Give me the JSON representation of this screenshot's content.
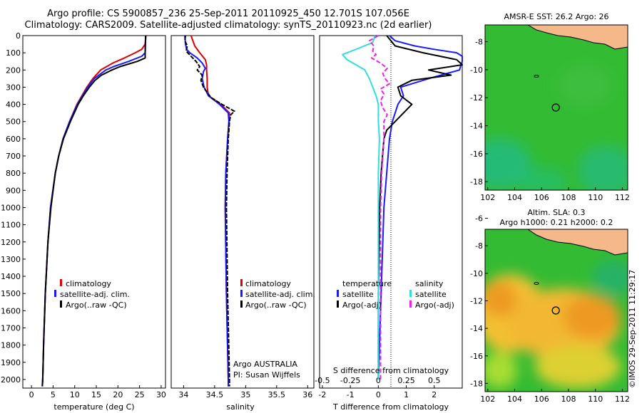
{
  "header": {
    "title_line1": "Argo profile: CS 5900857_236 25-Sep-2011 20110925_450 12.701S 107.056E",
    "title_line2": "Climatology: CARS2009. Satellite-adjusted climatology: synTS_20110923.nc (2d earlier)"
  },
  "colors": {
    "climatology": "#e00000",
    "satellite": "#1a1aff",
    "argo": "#000000",
    "salinity_sat": "#33dddd",
    "salinity_argo": "#ee22ee",
    "land": "#f5b88a",
    "sea_sst": "#33bb33",
    "sea_sla_warm": "#f2a630"
  },
  "depth_axis": {
    "ticks": [
      0,
      100,
      200,
      300,
      400,
      500,
      600,
      700,
      800,
      900,
      1000,
      1100,
      1200,
      1300,
      1400,
      1500,
      1600,
      1700,
      1800,
      1900,
      2000
    ]
  },
  "chart_data": [
    {
      "type": "line",
      "name": "temperature-panel",
      "xlabel": "temperature (deg C)",
      "xlim": [
        -2,
        31
      ],
      "ylim": [
        2050,
        0
      ],
      "x_ticks": [
        0,
        5,
        10,
        15,
        20,
        25,
        30
      ],
      "legend": [
        "climatology",
        "satellite-adj. clim.",
        "Argo(..raw -QC)"
      ],
      "series": [
        {
          "name": "climatology",
          "depth": [
            0,
            50,
            80,
            100,
            130,
            160,
            200,
            250,
            300,
            400,
            500,
            600,
            700,
            800,
            1000,
            1200,
            1500,
            1800,
            2000,
            2040
          ],
          "values": [
            26.5,
            26.3,
            25.5,
            24,
            21.5,
            18.8,
            16,
            14.2,
            12.8,
            10.5,
            8.8,
            7.3,
            6.3,
            5.5,
            4.4,
            3.8,
            3.2,
            2.8,
            2.6,
            2.5
          ]
        },
        {
          "name": "satellite-adj. clim.",
          "depth": [
            0,
            100,
            120,
            150,
            180,
            200,
            250,
            300,
            400,
            500,
            600,
            700,
            800,
            1000,
            1200,
            1500,
            1800,
            2000,
            2040
          ],
          "values": [
            26.4,
            26.3,
            25.5,
            22.5,
            19,
            17.2,
            14.5,
            13,
            10.6,
            8.8,
            7.3,
            6.3,
            5.5,
            4.4,
            3.8,
            3.2,
            2.8,
            2.6,
            2.5
          ]
        },
        {
          "name": "Argo(..raw -QC)",
          "depth": [
            0,
            100,
            130,
            150,
            180,
            200,
            230,
            260,
            300,
            350,
            400,
            450,
            500,
            600,
            700,
            800,
            1000,
            1200,
            1500,
            1800,
            2000,
            2040
          ],
          "values": [
            26.4,
            26.3,
            26.3,
            24.5,
            20.5,
            18.6,
            16.2,
            14.7,
            13.4,
            12,
            10.8,
            9.9,
            9,
            7.4,
            6.3,
            5.5,
            4.5,
            3.8,
            3.2,
            2.8,
            2.6,
            2.5
          ]
        }
      ]
    },
    {
      "type": "line",
      "name": "salinity-panel",
      "xlabel": "salinity",
      "xlim": [
        33.8,
        36.1
      ],
      "ylim": [
        2050,
        0
      ],
      "x_ticks": [
        34,
        34.5,
        35,
        35.5,
        36
      ],
      "legend": [
        "climatology",
        "satellite-adj. clim.",
        "Argo(..raw -QC)"
      ],
      "annotation": [
        "Argo AUSTRALIA",
        "PI: Susan Wijffels"
      ],
      "series": [
        {
          "name": "climatology",
          "depth": [
            0,
            60,
            100,
            140,
            170,
            200,
            250,
            300,
            350,
            400,
            450,
            500,
            600,
            800,
            1000,
            1500,
            2000,
            2040
          ],
          "values": [
            34.12,
            34.18,
            34.26,
            34.35,
            34.37,
            34.37,
            34.38,
            34.38,
            34.4,
            34.6,
            34.74,
            34.73,
            34.71,
            34.68,
            34.67,
            34.69,
            34.72,
            34.72
          ]
        },
        {
          "name": "satellite-adj. clim.",
          "depth": [
            0,
            50,
            80,
            100,
            130,
            160,
            190,
            210,
            250,
            300,
            350,
            400,
            450,
            500,
            600,
            800,
            1000,
            1500,
            2000,
            2040
          ],
          "values": [
            34.02,
            34.03,
            34.05,
            34.1,
            34.22,
            34.3,
            34.35,
            34.32,
            34.3,
            34.33,
            34.4,
            34.58,
            34.72,
            34.73,
            34.71,
            34.68,
            34.67,
            34.69,
            34.72,
            34.72
          ]
        },
        {
          "name": "Argo(..raw -QC)",
          "depth": [
            0,
            30,
            60,
            90,
            120,
            150,
            180,
            200,
            230,
            260,
            300,
            330,
            360,
            400,
            440,
            460,
            500,
            550,
            600,
            800,
            1000,
            1500,
            2000,
            2040
          ],
          "values": [
            34.03,
            34.02,
            34.06,
            34.04,
            34.12,
            34.2,
            34.26,
            34.22,
            34.3,
            34.28,
            34.32,
            34.38,
            34.44,
            34.62,
            34.82,
            34.76,
            34.74,
            34.73,
            34.72,
            34.7,
            34.69,
            34.71,
            34.74,
            34.74
          ]
        }
      ]
    },
    {
      "type": "line",
      "name": "difference-panel",
      "xlabel": "T difference from climatology",
      "xlabel_top": "S difference from climatology",
      "x_ticks_T": [
        -2,
        -1,
        0,
        1,
        2
      ],
      "x_ticks_S": [
        -0.5,
        -0.25,
        0,
        0.25,
        0.5
      ],
      "xlim_T": [
        -2.1,
        3
      ],
      "ylim": [
        2050,
        0
      ],
      "legend_T": [
        "temperature",
        "satellite",
        "Argo(-adj)"
      ],
      "legend_S": [
        "salinity",
        "satellite",
        "Argo(-adj)"
      ],
      "series": [
        {
          "name": "T satellite",
          "depth": [
            0,
            30,
            60,
            80,
            100,
            120,
            150,
            200,
            250,
            300,
            350,
            400,
            450,
            500,
            600,
            800,
            1000,
            1500,
            2000
          ],
          "values": [
            0.4,
            0.6,
            1.3,
            2,
            2.8,
            3,
            3,
            2.9,
            1.8,
            0.8,
            0.9,
            0.7,
            0.6,
            0.5,
            0.4,
            0.3,
            0.2,
            0.1,
            0
          ]
        },
        {
          "name": "T Argo(-adj)",
          "depth": [
            0,
            60,
            100,
            140,
            170,
            200,
            230,
            260,
            300,
            350,
            400,
            450,
            500,
            550,
            600,
            800,
            1000,
            1500,
            2000
          ],
          "values": [
            0.3,
            0.6,
            1.6,
            2.8,
            3,
            1.8,
            2.6,
            1.2,
            0.7,
            0.8,
            1.2,
            0.9,
            0.6,
            0.3,
            0.2,
            0.1,
            0.05,
            0,
            0
          ]
        },
        {
          "name": "S satellite",
          "depth": [
            0,
            40,
            80,
            110,
            140,
            170,
            200,
            250,
            300,
            350,
            400,
            500,
            600,
            800,
            1000,
            1500,
            2000
          ],
          "values": [
            -0.03,
            -0.05,
            -0.2,
            -0.32,
            -0.28,
            -0.2,
            -0.12,
            -0.08,
            -0.05,
            -0.02,
            0,
            0,
            0.01,
            0,
            0,
            0,
            0
          ]
        },
        {
          "name": "S Argo(-adj)",
          "depth": [
            0,
            30,
            60,
            90,
            110,
            130,
            160,
            190,
            220,
            250,
            280,
            310,
            340,
            380,
            420,
            460,
            500,
            600,
            800,
            1000,
            1500,
            2000
          ],
          "values": [
            0,
            -0.08,
            -0.04,
            -0.05,
            -0.02,
            -0.06,
            0.02,
            0.08,
            0.04,
            0.06,
            0.1,
            0.02,
            0.05,
            0.02,
            0.04,
            0.08,
            0.05,
            0.05,
            0.03,
            0.02,
            0.02,
            0.02
          ]
        }
      ]
    },
    {
      "type": "heatmap",
      "name": "sst-map",
      "title": "AMSR-E SST: 26.2 Argo: 26",
      "xlim": [
        101.8,
        112.4
      ],
      "ylim": [
        -18.6,
        -6.8
      ],
      "x_ticks": [
        102,
        104,
        106,
        108,
        110,
        112
      ],
      "y_ticks": [
        -8,
        -10,
        -12,
        -14,
        -16,
        -18
      ],
      "argo_position": [
        107.056,
        -12.701
      ]
    },
    {
      "type": "heatmap",
      "name": "sla-map",
      "title_line1": "Altim. SLA: 0.3",
      "title_line2": "Argo h1000: 0.21 h2000: 0.2",
      "xlim": [
        101.8,
        112.4
      ],
      "ylim": [
        -18.6,
        -6.8
      ],
      "x_ticks": [
        102,
        104,
        106,
        108,
        110,
        112
      ],
      "y_ticks": [
        -6,
        -8,
        -10,
        -12,
        -14,
        -16,
        -18
      ],
      "argo_position": [
        107.056,
        -12.701
      ]
    }
  ],
  "stamp": "©IMOS 29-Sep-2011 11:29:17"
}
